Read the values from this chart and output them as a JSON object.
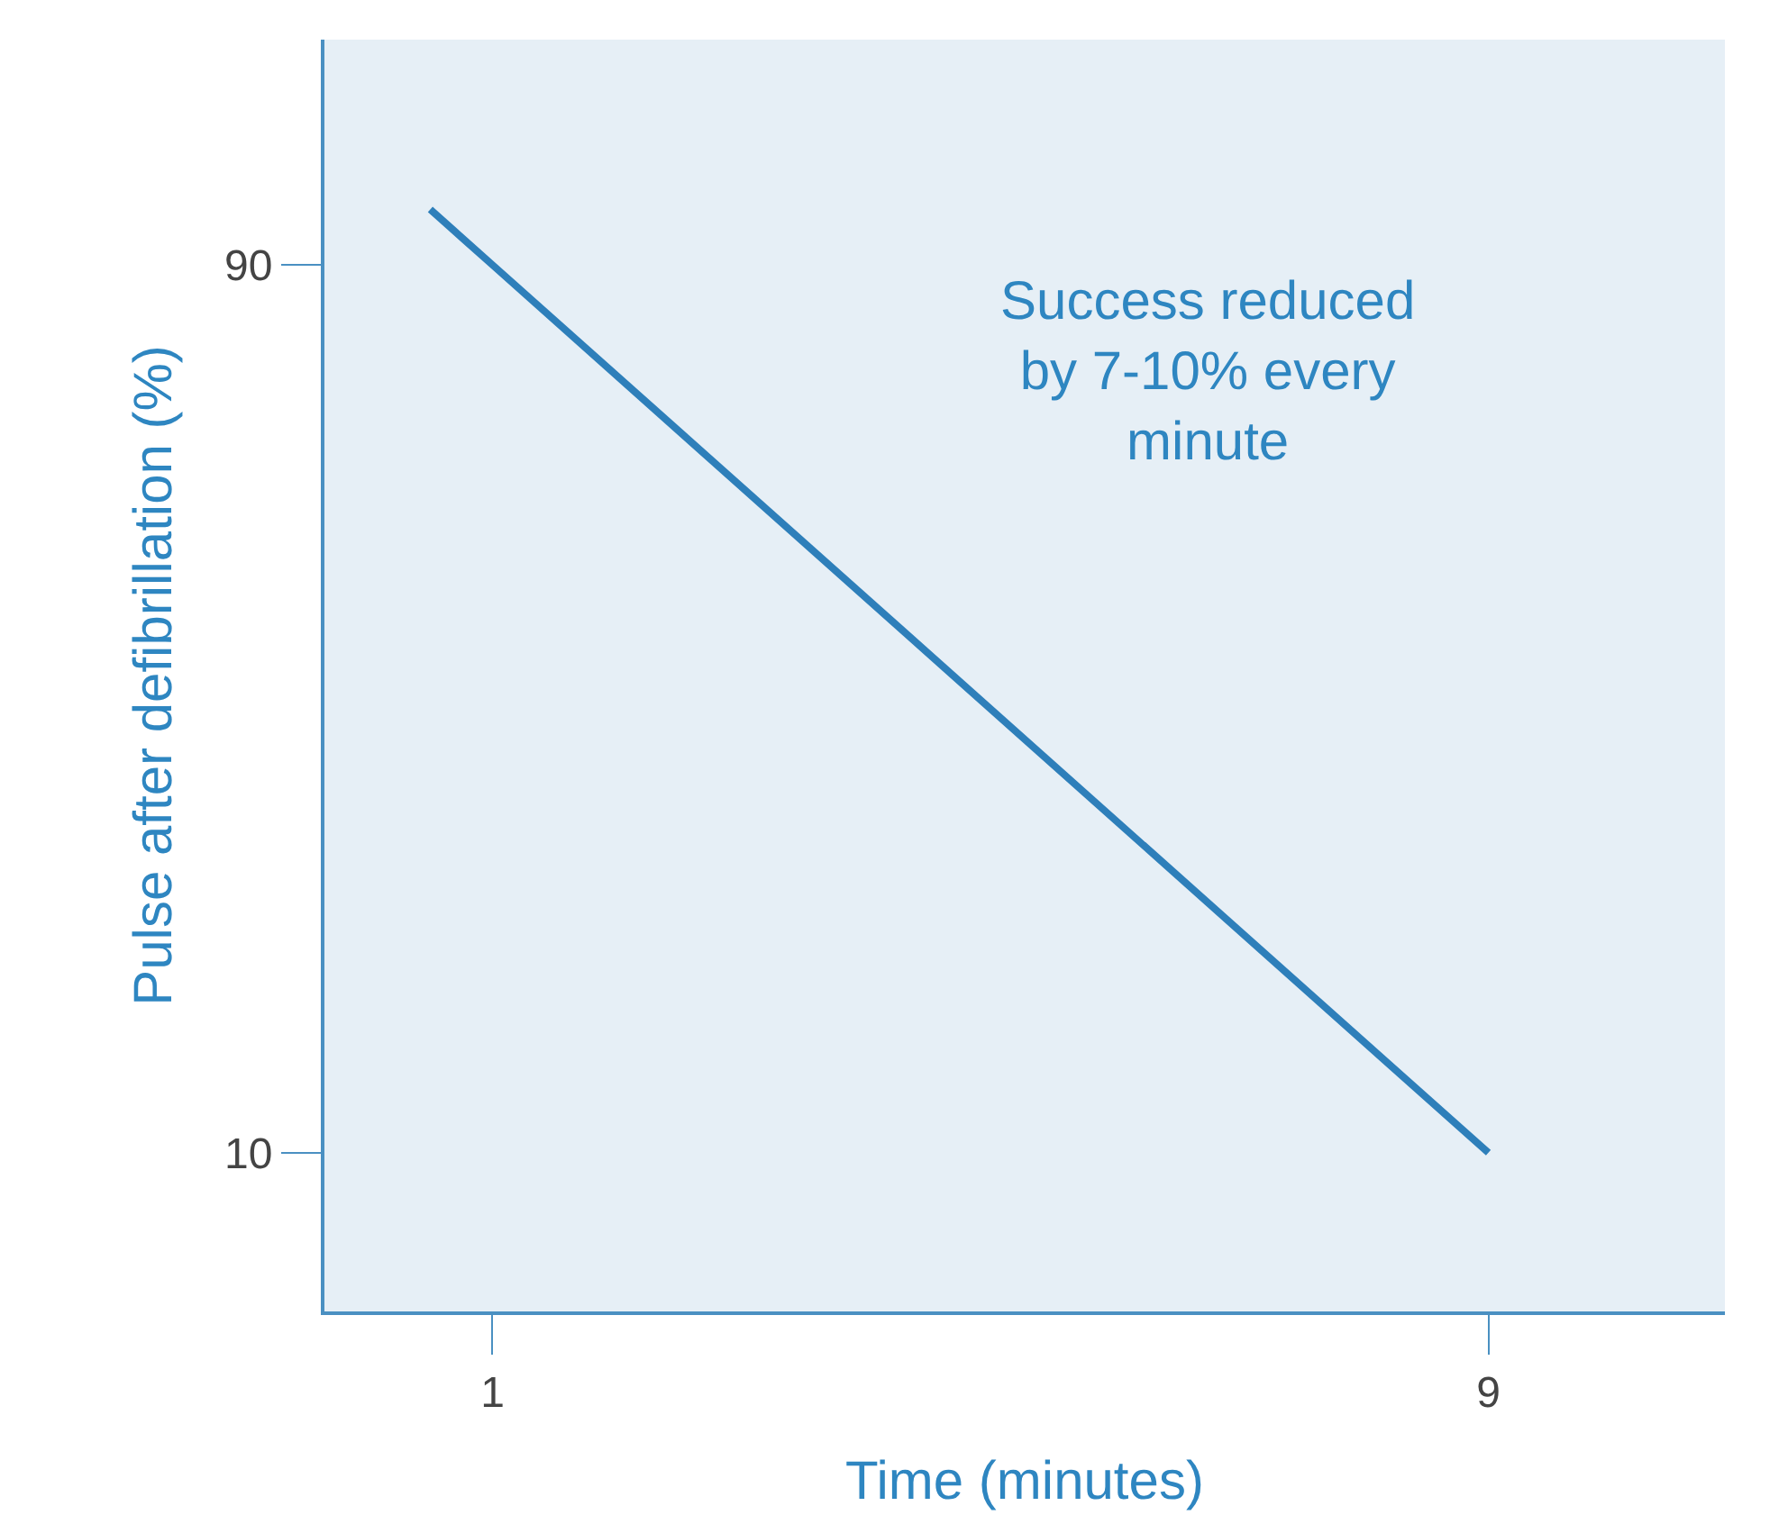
{
  "chart_data": {
    "type": "line",
    "xlabel": "Time (minutes)",
    "ylabel": "Pulse after defibrillation (%)",
    "x": [
      0.5,
      1,
      9
    ],
    "series": [
      {
        "color": "#2e7fba",
        "values": [
          95,
          90,
          10
        ]
      }
    ],
    "xlim": [
      -0.35,
      10.9
    ],
    "xticks": [
      1,
      9
    ],
    "ylim": [
      -4.3,
      110.3
    ],
    "yticks": [
      90,
      10
    ],
    "annotations": [
      "Success reduced\nby 7-10% every\nminute"
    ],
    "grid": false,
    "marker": "none",
    "line_style": "solid"
  }
}
